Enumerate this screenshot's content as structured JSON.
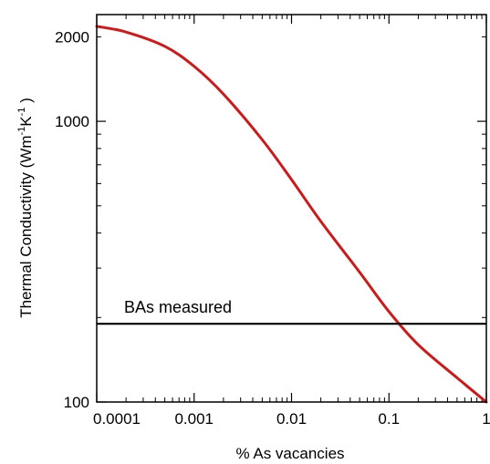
{
  "chart_data": {
    "type": "line",
    "xlabel": "% As vacancies",
    "ylabel_main": "Thermal Conductivity (Wm",
    "ylabel_sup1": "-1",
    "ylabel_mid": "K",
    "ylabel_sup2": "-1",
    "ylabel_end": " )",
    "x_scale": "log",
    "y_scale": "log",
    "xlim": [
      0.0001,
      1
    ],
    "ylim": [
      100,
      2400
    ],
    "x_ticks": [
      {
        "value": 0.0001,
        "label": "0.0001"
      },
      {
        "value": 0.001,
        "label": "0.001"
      },
      {
        "value": 0.01,
        "label": "0.01"
      },
      {
        "value": 0.1,
        "label": "0.1"
      },
      {
        "value": 1,
        "label": "1"
      }
    ],
    "y_ticks": [
      {
        "value": 100,
        "label": "100"
      },
      {
        "value": 1000,
        "label": "1000"
      },
      {
        "value": 2000,
        "label": "2000"
      }
    ],
    "grid": false,
    "series": [
      {
        "color": "#d01818",
        "x": [
          0.0001,
          0.0002,
          0.0005,
          0.001,
          0.002,
          0.005,
          0.01,
          0.02,
          0.05,
          0.1,
          0.2,
          0.5,
          1
        ],
        "y": [
          2180,
          2080,
          1850,
          1570,
          1250,
          860,
          620,
          440,
          290,
          210,
          160,
          122,
          100
        ]
      }
    ],
    "reference_line": {
      "value": 190,
      "label": "BAs measured",
      "color": "#000000"
    }
  }
}
